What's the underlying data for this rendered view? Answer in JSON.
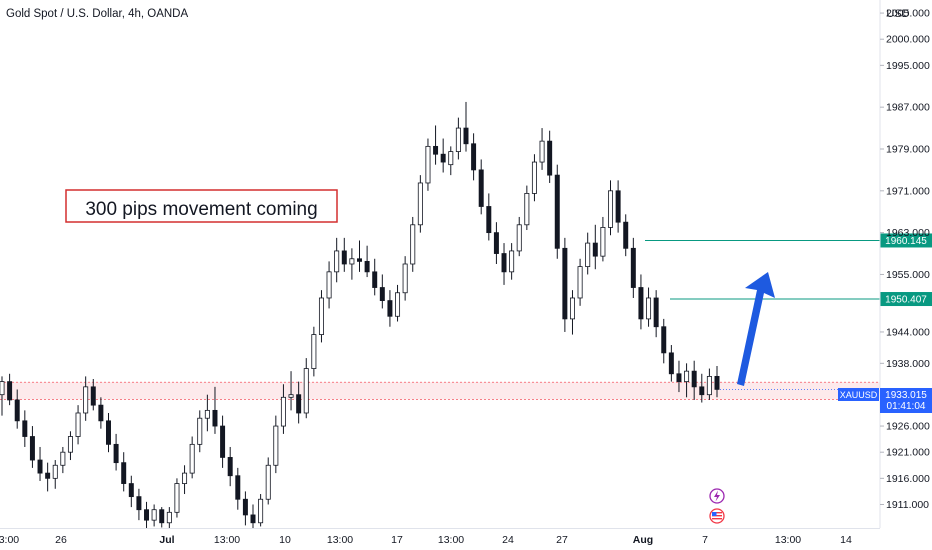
{
  "chart_data": {
    "type": "candlestick",
    "title": "Gold Spot / U.S. Dollar, 4h, OANDA",
    "currency": "USD",
    "symbol": "XAUUSD",
    "last_price": "1933.015",
    "countdown": "01:41:04",
    "ylim": [
      1906.5,
      2007.5
    ],
    "y_ticks": [
      "2005.000",
      "2000.000",
      "1995.000",
      "1987.000",
      "1979.000",
      "1971.000",
      "1963.000",
      "1955.000",
      "1944.000",
      "1938.000",
      "1926.000",
      "1921.000",
      "1916.000",
      "1911.000"
    ],
    "x_ticks": [
      "13:00",
      "26",
      "Jul",
      "13:00",
      "10",
      "13:00",
      "17",
      "13:00",
      "24",
      "27",
      "Aug",
      "7",
      "13:00",
      "14"
    ],
    "annotation": "300 pips movement coming",
    "levels": [
      {
        "label": "1960.145",
        "value": 1961.5,
        "color": "#089981"
      },
      {
        "label": "1950.407",
        "value": 1950.3,
        "color": "#089981"
      }
    ],
    "support_zone": {
      "from": 1931.1,
      "to": 1934.4,
      "color": "#f23645"
    },
    "candles": [
      [
        1932.0,
        1935.5,
        1928.0,
        1934.5
      ],
      [
        1934.5,
        1936.0,
        1930.0,
        1931.0
      ],
      [
        1931.0,
        1933.0,
        1925.5,
        1927.0
      ],
      [
        1927.0,
        1929.0,
        1922.0,
        1924.0
      ],
      [
        1924.0,
        1926.0,
        1918.0,
        1919.5
      ],
      [
        1919.5,
        1922.0,
        1915.5,
        1917.0
      ],
      [
        1917.0,
        1919.0,
        1913.5,
        1916.0
      ],
      [
        1916.0,
        1919.5,
        1914.0,
        1918.5
      ],
      [
        1918.5,
        1922.0,
        1917.0,
        1921.0
      ],
      [
        1921.0,
        1925.0,
        1919.5,
        1924.0
      ],
      [
        1924.0,
        1930.0,
        1922.5,
        1928.5
      ],
      [
        1928.5,
        1935.5,
        1927.0,
        1933.5
      ],
      [
        1933.5,
        1935.0,
        1929.0,
        1930.0
      ],
      [
        1930.0,
        1931.5,
        1925.5,
        1927.0
      ],
      [
        1927.0,
        1928.5,
        1921.0,
        1922.5
      ],
      [
        1922.5,
        1924.5,
        1917.5,
        1919.0
      ],
      [
        1919.0,
        1921.0,
        1913.5,
        1915.0
      ],
      [
        1915.0,
        1916.5,
        1910.5,
        1912.5
      ],
      [
        1912.5,
        1914.0,
        1908.0,
        1910.0
      ],
      [
        1910.0,
        1911.5,
        1906.5,
        1908.0
      ],
      [
        1908.0,
        1911.0,
        1906.8,
        1910.0
      ],
      [
        1910.0,
        1910.5,
        1906.6,
        1907.5
      ],
      [
        1907.5,
        1910.5,
        1906.5,
        1909.5
      ],
      [
        1909.5,
        1916.0,
        1908.5,
        1915.0
      ],
      [
        1915.0,
        1918.5,
        1913.0,
        1917.0
      ],
      [
        1917.0,
        1924.0,
        1916.0,
        1922.5
      ],
      [
        1922.5,
        1929.0,
        1921.0,
        1927.5
      ],
      [
        1927.5,
        1932.0,
        1925.0,
        1929.0
      ],
      [
        1929.0,
        1933.5,
        1924.5,
        1926.0
      ],
      [
        1926.0,
        1928.0,
        1918.0,
        1920.0
      ],
      [
        1920.0,
        1922.0,
        1914.5,
        1916.5
      ],
      [
        1916.5,
        1918.0,
        1910.0,
        1912.0
      ],
      [
        1912.0,
        1913.5,
        1907.0,
        1909.0
      ],
      [
        1909.0,
        1911.0,
        1906.5,
        1907.5
      ],
      [
        1907.5,
        1913.0,
        1906.8,
        1912.0
      ],
      [
        1912.0,
        1920.0,
        1911.0,
        1918.5
      ],
      [
        1918.5,
        1928.0,
        1917.0,
        1926.0
      ],
      [
        1926.0,
        1934.0,
        1924.5,
        1931.5
      ],
      [
        1931.5,
        1936.5,
        1929.0,
        1932.0
      ],
      [
        1932.0,
        1934.5,
        1926.5,
        1928.5
      ],
      [
        1928.5,
        1939.0,
        1927.5,
        1937.0
      ],
      [
        1937.0,
        1945.0,
        1935.5,
        1943.5
      ],
      [
        1943.5,
        1952.0,
        1942.0,
        1950.5
      ],
      [
        1950.5,
        1957.5,
        1948.5,
        1955.5
      ],
      [
        1955.5,
        1962.0,
        1953.5,
        1959.5
      ],
      [
        1959.5,
        1962.0,
        1955.5,
        1957.0
      ],
      [
        1957.0,
        1960.0,
        1954.0,
        1958.0
      ],
      [
        1958.0,
        1961.5,
        1955.5,
        1957.5
      ],
      [
        1957.5,
        1960.5,
        1954.5,
        1955.5
      ],
      [
        1955.5,
        1958.0,
        1951.0,
        1952.5
      ],
      [
        1952.5,
        1955.0,
        1948.5,
        1950.0
      ],
      [
        1950.0,
        1952.0,
        1945.0,
        1947.0
      ],
      [
        1947.0,
        1953.0,
        1946.0,
        1951.5
      ],
      [
        1951.5,
        1958.5,
        1950.0,
        1957.0
      ],
      [
        1957.0,
        1966.0,
        1955.5,
        1964.5
      ],
      [
        1964.5,
        1974.0,
        1963.0,
        1972.5
      ],
      [
        1972.5,
        1981.0,
        1971.0,
        1979.5
      ],
      [
        1979.5,
        1983.5,
        1976.0,
        1978.0
      ],
      [
        1978.0,
        1981.0,
        1974.5,
        1976.5
      ],
      [
        1976.0,
        1979.5,
        1974.0,
        1978.5
      ],
      [
        1978.5,
        1985.0,
        1977.0,
        1983.0
      ],
      [
        1983.0,
        1988.0,
        1978.5,
        1980.0
      ],
      [
        1980.0,
        1982.0,
        1973.0,
        1975.0
      ],
      [
        1975.0,
        1977.0,
        1966.5,
        1968.0
      ],
      [
        1968.0,
        1970.5,
        1961.5,
        1963.0
      ],
      [
        1963.0,
        1965.0,
        1957.0,
        1959.0
      ],
      [
        1959.0,
        1961.0,
        1953.0,
        1955.5
      ],
      [
        1955.5,
        1961.0,
        1954.0,
        1959.5
      ],
      [
        1959.5,
        1966.0,
        1958.5,
        1964.5
      ],
      [
        1964.5,
        1972.0,
        1963.5,
        1970.5
      ],
      [
        1970.5,
        1978.0,
        1969.0,
        1976.5
      ],
      [
        1976.5,
        1983.0,
        1975.0,
        1980.5
      ],
      [
        1980.5,
        1982.5,
        1972.5,
        1974.0
      ],
      [
        1974.0,
        1976.0,
        1958.0,
        1960.0
      ],
      [
        1960.0,
        1962.0,
        1944.0,
        1946.5
      ],
      [
        1946.5,
        1952.0,
        1943.5,
        1950.5
      ],
      [
        1950.5,
        1958.0,
        1949.0,
        1956.5
      ],
      [
        1956.5,
        1963.0,
        1955.0,
        1961.0
      ],
      [
        1961.0,
        1964.5,
        1956.0,
        1958.5
      ],
      [
        1958.5,
        1966.0,
        1957.5,
        1964.0
      ],
      [
        1964.0,
        1973.0,
        1962.5,
        1971.0
      ],
      [
        1971.0,
        1973.0,
        1963.0,
        1965.0
      ],
      [
        1965.0,
        1966.5,
        1958.5,
        1960.0
      ],
      [
        1960.0,
        1962.0,
        1950.5,
        1952.5
      ],
      [
        1952.5,
        1955.0,
        1944.5,
        1946.5
      ],
      [
        1946.5,
        1952.5,
        1945.0,
        1950.5
      ],
      [
        1950.5,
        1952.0,
        1943.0,
        1945.0
      ],
      [
        1945.0,
        1946.5,
        1938.0,
        1940.0
      ],
      [
        1940.0,
        1941.5,
        1934.5,
        1936.0
      ],
      [
        1936.0,
        1938.5,
        1932.5,
        1934.5
      ],
      [
        1934.5,
        1938.0,
        1931.5,
        1936.5
      ],
      [
        1936.5,
        1938.5,
        1931.0,
        1933.5
      ],
      [
        1933.5,
        1936.0,
        1930.5,
        1932.0
      ],
      [
        1932.0,
        1937.0,
        1931.0,
        1935.5
      ],
      [
        1935.5,
        1937.5,
        1931.5,
        1933.015
      ]
    ]
  }
}
